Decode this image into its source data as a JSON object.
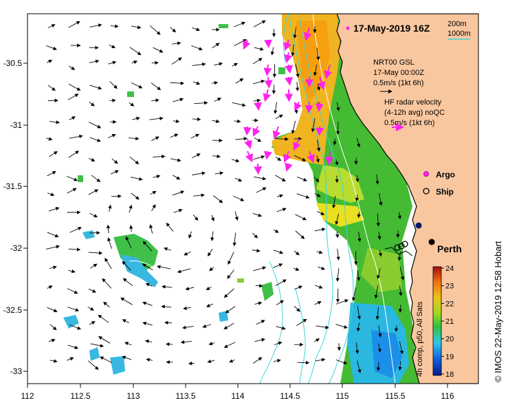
{
  "title": "17-May-2019 16Z",
  "depth_legend": {
    "line1": "200m",
    "line2": "1000m",
    "line2_color": "#3cd6d6"
  },
  "model_legend": {
    "line1": "NRT00 GSL",
    "line2": "17-May 00:00Z",
    "line3": "0.5m/s (1kt 6h)"
  },
  "radar_legend": {
    "line1": "HF radar velocity",
    "line2": "(4-12h avg) noQC",
    "line3": "0.5m/s (1kt 6h)",
    "arrow_color": "#ff22ee"
  },
  "markers": {
    "argo": "Argo",
    "ship": "Ship",
    "argo_color": "#ff22ee"
  },
  "city": "Perth",
  "credit": "© IMOS 22-May-2019 12:58 Hobart",
  "colorbar": {
    "label": "4h comp, p50, All Sats",
    "ticks": [
      "24",
      "23",
      "22",
      "21",
      "20",
      "19",
      "18"
    ],
    "min": 18,
    "max": 24
  },
  "axes": {
    "x_ticks": [
      "112",
      "112.5",
      "113",
      "113.5",
      "114",
      "114.5",
      "115",
      "115.5",
      "116"
    ],
    "y_ticks": [
      "-30.5",
      "-31",
      "-31.5",
      "-32",
      "-32.5",
      "-33"
    ]
  },
  "colors": {
    "land": "#f9c79f",
    "land_edge": "#000000",
    "ocean": "#ffffff",
    "isobath": "#3cd6d6",
    "arrow": "#000000"
  }
}
